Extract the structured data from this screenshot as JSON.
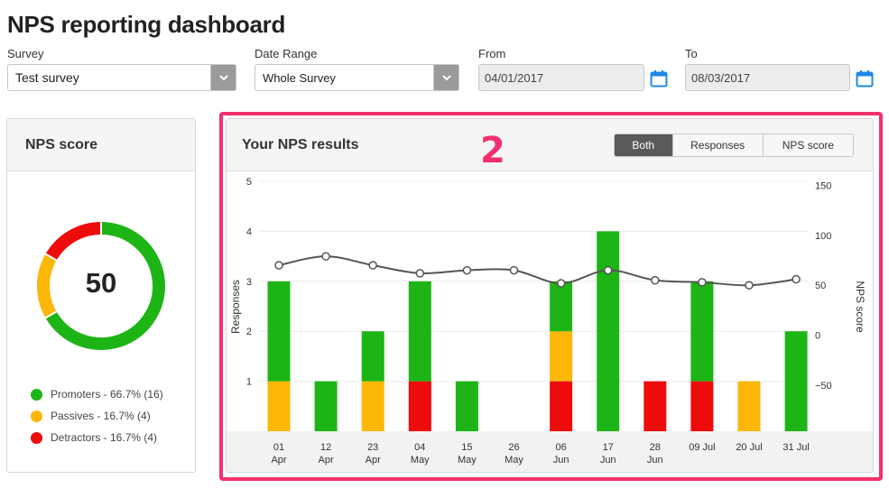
{
  "page_title": "NPS reporting dashboard",
  "filters": {
    "survey_label": "Survey",
    "survey_value": "Test survey",
    "date_range_label": "Date Range",
    "date_range_value": "Whole Survey",
    "from_label": "From",
    "from_value": "04/01/2017",
    "to_label": "To",
    "to_value": "08/03/2017",
    "icons": [
      "chevron-down-icon",
      "calendar-icon"
    ]
  },
  "nps_score_panel": {
    "title": "NPS score",
    "score": "50",
    "legend": [
      {
        "label": "Promoters - 66.7% (16)",
        "color": "#1db515"
      },
      {
        "label": "Passives - 16.7% (4)",
        "color": "#fdb707"
      },
      {
        "label": "Detractors - 16.7% (4)",
        "color": "#ee0b0b"
      }
    ]
  },
  "results_panel": {
    "title": "Your NPS results",
    "toggle": [
      "Both",
      "Responses",
      "NPS score"
    ],
    "active_toggle": "Both",
    "annotation": "2"
  },
  "chart_data": {
    "type": "bar",
    "stacked": true,
    "categories": [
      "01 Apr",
      "12 Apr",
      "23 Apr",
      "04 May",
      "15 May",
      "26 May",
      "06 Jun",
      "17 Jun",
      "28 Jun",
      "09 Jul",
      "20 Jul",
      "31 Jul"
    ],
    "category_lines": [
      [
        "01",
        "Apr"
      ],
      [
        "12",
        "Apr"
      ],
      [
        "23",
        "Apr"
      ],
      [
        "04",
        "May"
      ],
      [
        "15",
        "May"
      ],
      [
        "26",
        "May"
      ],
      [
        "06",
        "Jun"
      ],
      [
        "17",
        "Jun"
      ],
      [
        "28",
        "Jun"
      ],
      [
        "09 Jul",
        ""
      ],
      [
        "20 Jul",
        ""
      ],
      [
        "31 Jul",
        ""
      ]
    ],
    "series": [
      {
        "name": "Detractors",
        "color": "#ee0b0b",
        "values": [
          0,
          0,
          0,
          1,
          0,
          0,
          1,
          0,
          1,
          1,
          0,
          0
        ]
      },
      {
        "name": "Passives",
        "color": "#fdb707",
        "values": [
          1,
          0,
          1,
          0,
          0,
          0,
          1,
          0,
          0,
          0,
          1,
          0
        ]
      },
      {
        "name": "Promoters",
        "color": "#1db515",
        "values": [
          2,
          1,
          1,
          2,
          1,
          0,
          1,
          4,
          0,
          2,
          0,
          2
        ]
      }
    ],
    "line": {
      "color": "#555555",
      "values": [
        70,
        79,
        70,
        62,
        65,
        65,
        52,
        65,
        55,
        53,
        50,
        56
      ]
    },
    "ylabel": "Responses",
    "y2label": "NPS score",
    "yticks": [
      "1",
      "2",
      "3",
      "4",
      "5"
    ],
    "y2ticks": [
      "150",
      "100",
      "50",
      "0",
      "-50"
    ],
    "ylim": [
      0,
      5
    ],
    "y2lim": [
      -100,
      150
    ],
    "grid": true
  }
}
